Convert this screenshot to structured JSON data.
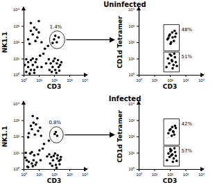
{
  "chart_data": [
    {
      "type": "scatter",
      "title": "Uninfected",
      "x_label": "CD3",
      "y_label": "NK1.1",
      "log": true,
      "color": "#000000",
      "marker": "circle",
      "xlim": [
        1,
        10000
      ],
      "ylim": [
        1,
        10000
      ],
      "xticks": [
        {
          "value": 1,
          "label": "10⁰"
        },
        {
          "value": 10,
          "label": "10¹"
        },
        {
          "value": 100,
          "label": "10²"
        },
        {
          "value": 1000,
          "label": "10³"
        },
        {
          "value": 10000,
          "label": "10⁴"
        }
      ],
      "yticks": [
        {
          "value": 1,
          "label": "10⁰"
        },
        {
          "value": 10,
          "label": "10¹"
        },
        {
          "value": 100,
          "label": "10²"
        },
        {
          "value": 1000,
          "label": "10³"
        },
        {
          "value": 10000,
          "label": "10⁴"
        }
      ],
      "x": [
        1.5,
        2,
        3,
        4,
        2,
        5,
        6,
        3,
        1.2,
        8,
        4,
        7,
        2.5,
        5,
        1.5,
        50,
        80,
        120,
        150,
        200,
        90,
        60,
        180,
        250,
        110,
        70,
        140,
        220,
        300,
        45,
        2,
        4,
        6,
        3,
        8,
        10,
        5,
        15,
        2.5,
        7,
        100,
        150,
        200,
        120,
        80,
        20,
        30,
        15,
        25,
        12,
        40,
        3,
        10
      ],
      "values": [
        1.5,
        3,
        2,
        4,
        6,
        2,
        6,
        8,
        4,
        3,
        10,
        9,
        1.2,
        1.3,
        9,
        2,
        3,
        2,
        5,
        3,
        7,
        5,
        8,
        4,
        10,
        1.5,
        1.3,
        1.8,
        6,
        9,
        150,
        300,
        120,
        500,
        200,
        400,
        800,
        100,
        80,
        600,
        150,
        100,
        200,
        250,
        90,
        20,
        5,
        3,
        40,
        15,
        60,
        1500,
        2000
      ],
      "gates": [
        {
          "shape": "ellipse",
          "x": [
            50,
            500
          ],
          "y": [
            40,
            500
          ],
          "label": "1.4%"
        }
      ]
    },
    {
      "type": "scatter",
      "x_label": "CD3",
      "y_label": "CD1d Tetramer",
      "log": true,
      "color": "#000000",
      "marker": "circle",
      "xlim": [
        1,
        10000
      ],
      "ylim": [
        1,
        10000
      ],
      "xticks": [
        {
          "value": 1,
          "label": "10⁰"
        },
        {
          "value": 10,
          "label": "10¹"
        },
        {
          "value": 100,
          "label": "10²"
        },
        {
          "value": 1000,
          "label": "10³"
        },
        {
          "value": 10000,
          "label": "10⁴"
        }
      ],
      "yticks": [
        {
          "value": 1,
          "label": "10⁰"
        },
        {
          "value": 10,
          "label": "10¹"
        },
        {
          "value": 100,
          "label": "10²"
        },
        {
          "value": 1000,
          "label": "10³"
        },
        {
          "value": 10000,
          "label": "10⁴"
        }
      ],
      "x": [
        70,
        100,
        150,
        200,
        120,
        90,
        180,
        250,
        80,
        140,
        220,
        110,
        60,
        90,
        130,
        170,
        210,
        100,
        150,
        240,
        75,
        120,
        190,
        280,
        140
      ],
      "values": [
        150,
        300,
        200,
        500,
        100,
        250,
        120,
        350,
        180,
        400,
        220,
        80,
        3,
        5,
        8,
        4,
        12,
        18,
        2.5,
        6,
        10,
        15,
        20,
        3.5,
        7
      ],
      "gates": [
        {
          "shape": "rect",
          "x": [
            40,
            400
          ],
          "y": [
            30,
            1200
          ],
          "label": "48%"
        },
        {
          "shape": "rect",
          "x": [
            40,
            400
          ],
          "y": [
            1.5,
            25
          ],
          "label": "51%"
        }
      ]
    },
    {
      "type": "scatter",
      "title": "Infected",
      "x_label": "CD3",
      "y_label": "NK1.1",
      "log": true,
      "color": "#000000",
      "marker": "circle",
      "xlim": [
        1,
        10000
      ],
      "ylim": [
        1,
        10000
      ],
      "xticks": [
        {
          "value": 1,
          "label": "10⁰"
        },
        {
          "value": 10,
          "label": "10¹"
        },
        {
          "value": 100,
          "label": "10²"
        },
        {
          "value": 1000,
          "label": "10³"
        },
        {
          "value": 10000,
          "label": "10⁴"
        }
      ],
      "yticks": [
        {
          "value": 1,
          "label": "10⁰"
        },
        {
          "value": 10,
          "label": "10¹"
        },
        {
          "value": 100,
          "label": "10²"
        },
        {
          "value": 1000,
          "label": "10³"
        },
        {
          "value": 10000,
          "label": "10⁴"
        }
      ],
      "x": [
        1.8,
        2.2,
        3.5,
        4.5,
        1.3,
        6,
        5,
        2.8,
        1.6,
        7,
        3.5,
        9,
        2,
        4,
        1.4,
        55,
        85,
        130,
        160,
        210,
        95,
        65,
        170,
        260,
        115,
        75,
        145,
        230,
        280,
        48,
        2.2,
        3.5,
        5.5,
        3,
        9,
        12,
        4.5,
        14,
        2,
        6.5,
        110,
        160,
        130,
        18,
        35,
        13,
        22,
        11,
        45,
        4,
        8
      ],
      "values": [
        1.4,
        2.8,
        2.2,
        3.5,
        5,
        1.8,
        7,
        9,
        3.5,
        2.5,
        11,
        8,
        1.3,
        1.5,
        10,
        2.2,
        3.5,
        1.8,
        4.5,
        3.2,
        6.5,
        5.5,
        7,
        3.8,
        9,
        1.6,
        1.2,
        2,
        5.5,
        8,
        160,
        280,
        130,
        450,
        220,
        350,
        700,
        110,
        90,
        550,
        140,
        110,
        190,
        18,
        6,
        3.5,
        35,
        14,
        55,
        1800,
        1300
      ],
      "gates": [
        {
          "shape": "ellipse",
          "x": [
            50,
            400
          ],
          "y": [
            40,
            400
          ],
          "label": "0.8%"
        }
      ]
    },
    {
      "type": "scatter",
      "x_label": "CD3",
      "y_label": "CD1d Tetramer",
      "log": true,
      "color": "#000000",
      "marker": "circle",
      "xlim": [
        1,
        10000
      ],
      "ylim": [
        1,
        10000
      ],
      "xticks": [
        {
          "value": 1,
          "label": "10⁰"
        },
        {
          "value": 10,
          "label": "10¹"
        },
        {
          "value": 100,
          "label": "10²"
        },
        {
          "value": 1000,
          "label": "10³"
        },
        {
          "value": 10000,
          "label": "10⁴"
        }
      ],
      "yticks": [
        {
          "value": 1,
          "label": "10⁰"
        },
        {
          "value": 10,
          "label": "10¹"
        },
        {
          "value": 100,
          "label": "10²"
        },
        {
          "value": 1000,
          "label": "10³"
        },
        {
          "value": 10000,
          "label": "10⁴"
        }
      ],
      "x": [
        80,
        110,
        160,
        210,
        130,
        95,
        190,
        240,
        140,
        170,
        65,
        95,
        125,
        175,
        215,
        105,
        155,
        235,
        80,
        125,
        195,
        270,
        145,
        110
      ],
      "values": [
        160,
        280,
        210,
        450,
        110,
        240,
        130,
        330,
        380,
        190,
        3.5,
        5.5,
        7,
        4.5,
        11,
        17,
        2.8,
        6.5,
        9,
        14,
        19,
        3.2,
        8,
        12
      ],
      "gates": [
        {
          "shape": "rect",
          "x": [
            40,
            400
          ],
          "y": [
            30,
            1200
          ],
          "label": "42%"
        },
        {
          "shape": "rect",
          "x": [
            40,
            400
          ],
          "y": [
            1.5,
            25
          ],
          "label": "57%"
        }
      ]
    }
  ]
}
